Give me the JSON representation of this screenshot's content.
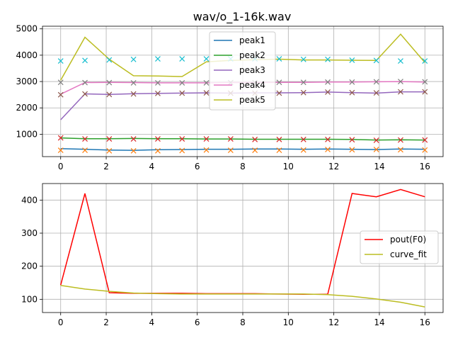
{
  "chart_data": [
    {
      "type": "line",
      "title": "wav/o_1-16k.wav",
      "xlabel": "",
      "ylabel": "",
      "xlim": [
        -0.8,
        16.8
      ],
      "ylim": [
        150,
        5100
      ],
      "xticks": [
        0,
        2,
        4,
        6,
        8,
        10,
        12,
        14,
        16
      ],
      "yticks": [
        1000,
        2000,
        3000,
        4000,
        5000
      ],
      "grid": true,
      "legend_position": "top-center",
      "x": [
        0,
        1.067,
        2.133,
        3.2,
        4.267,
        5.333,
        6.4,
        7.467,
        8.533,
        9.6,
        10.667,
        11.733,
        12.8,
        13.867,
        14.933,
        16
      ],
      "series": [
        {
          "name": "peak1",
          "color": "#1f77b4",
          "values": [
            450,
            430,
            400,
            390,
            410,
            420,
            430,
            430,
            440,
            440,
            430,
            440,
            430,
            420,
            440,
            430
          ]
        },
        {
          "name": "peak2",
          "color": "#2ca02c",
          "values": [
            860,
            830,
            830,
            840,
            830,
            830,
            820,
            820,
            810,
            810,
            810,
            810,
            800,
            780,
            790,
            780
          ]
        },
        {
          "name": "peak3",
          "color": "#9467bd",
          "values": [
            1550,
            2530,
            2510,
            2540,
            2550,
            2560,
            2570,
            2560,
            2570,
            2570,
            2580,
            2600,
            2580,
            2560,
            2610,
            2610
          ]
        },
        {
          "name": "peak4",
          "color": "#e377c2",
          "values": [
            2520,
            2960,
            2970,
            2960,
            2950,
            2950,
            2950,
            2960,
            2960,
            2970,
            2970,
            2980,
            2980,
            2990,
            3000,
            2980
          ]
        },
        {
          "name": "peak5",
          "color": "#bcbd22",
          "values": [
            3050,
            4680,
            3850,
            3220,
            3210,
            3190,
            3750,
            3800,
            3830,
            3850,
            3820,
            3820,
            3810,
            3800,
            4800,
            3720
          ]
        }
      ],
      "markers": [
        {
          "color": "#ff7f0e",
          "values": [
            390,
            390,
            370,
            370,
            370,
            380,
            400,
            390,
            390,
            390,
            400,
            420,
            410,
            420,
            410,
            400
          ]
        },
        {
          "color": "#d62728",
          "values": [
            860,
            820,
            820,
            820,
            820,
            820,
            820,
            820,
            800,
            800,
            800,
            800,
            790,
            770,
            780,
            780
          ]
        },
        {
          "color": "#8c564b",
          "values": [
            2500,
            2530,
            2510,
            2530,
            2550,
            2560,
            2570,
            2560,
            2560,
            2560,
            2580,
            2600,
            2580,
            2570,
            2610,
            2610
          ]
        },
        {
          "color": "#7f7f7f",
          "values": [
            2970,
            2960,
            2960,
            2950,
            2950,
            2950,
            2950,
            2960,
            2960,
            2970,
            2970,
            2980,
            2980,
            2990,
            3000,
            2990
          ]
        },
        {
          "color": "#17becf",
          "values": [
            3780,
            3800,
            3820,
            3840,
            3860,
            3860,
            3860,
            3860,
            3860,
            3860,
            3840,
            3840,
            3810,
            3800,
            3780,
            3780
          ]
        }
      ]
    },
    {
      "type": "line",
      "title": "",
      "xlabel": "",
      "ylabel": "",
      "xlim": [
        -0.8,
        16.8
      ],
      "ylim": [
        60,
        450
      ],
      "xticks": [
        0,
        2,
        4,
        6,
        8,
        10,
        12,
        14,
        16
      ],
      "yticks": [
        100,
        200,
        300,
        400
      ],
      "grid": true,
      "legend_position": "center-right",
      "x": [
        0,
        1.067,
        2.133,
        3.2,
        4.267,
        5.333,
        6.4,
        7.467,
        8.533,
        9.6,
        10.667,
        11.733,
        12.8,
        13.867,
        14.933,
        16
      ],
      "series": [
        {
          "name": "pout(F0)",
          "color": "#ff0000",
          "values": [
            143,
            420,
            120,
            118,
            118,
            118,
            117,
            117,
            117,
            116,
            115,
            115,
            420,
            410,
            432,
            410
          ]
        },
        {
          "name": "curve_fit",
          "color": "#bcbd22",
          "values": [
            142,
            131,
            124,
            119,
            117,
            116,
            116,
            116,
            116,
            116,
            116,
            114,
            109,
            101,
            91,
            77
          ]
        }
      ]
    }
  ]
}
